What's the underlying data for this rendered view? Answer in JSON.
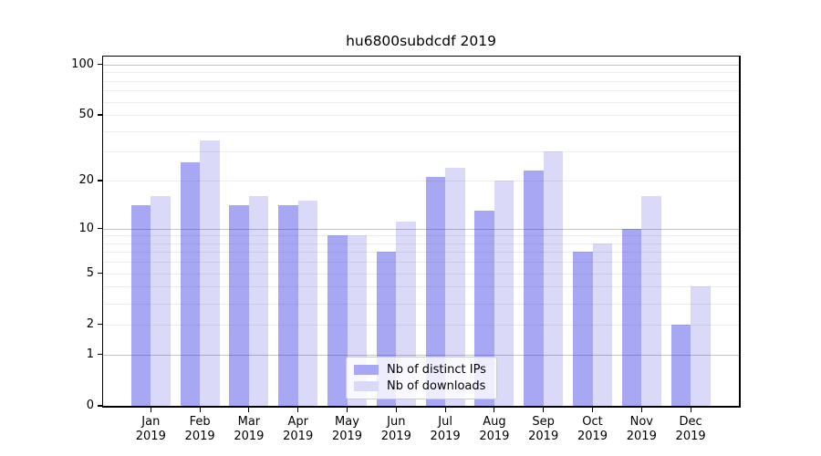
{
  "chart_data": {
    "type": "bar",
    "title": "hu6800subdcdf 2019",
    "categories": [
      {
        "month": "Jan",
        "year": "2019"
      },
      {
        "month": "Feb",
        "year": "2019"
      },
      {
        "month": "Mar",
        "year": "2019"
      },
      {
        "month": "Apr",
        "year": "2019"
      },
      {
        "month": "May",
        "year": "2019"
      },
      {
        "month": "Jun",
        "year": "2019"
      },
      {
        "month": "Jul",
        "year": "2019"
      },
      {
        "month": "Aug",
        "year": "2019"
      },
      {
        "month": "Sep",
        "year": "2019"
      },
      {
        "month": "Oct",
        "year": "2019"
      },
      {
        "month": "Nov",
        "year": "2019"
      },
      {
        "month": "Dec",
        "year": "2019"
      }
    ],
    "series": [
      {
        "name": "Nb of distinct IPs",
        "color": "#a7a7f3",
        "values": [
          14,
          26,
          14,
          14,
          9,
          7,
          21,
          13,
          23,
          7,
          10,
          2
        ]
      },
      {
        "name": "Nb of downloads",
        "color": "#dadaf8",
        "values": [
          16,
          35,
          16,
          15,
          9,
          11,
          24,
          20,
          30,
          8,
          16,
          4
        ]
      }
    ],
    "y_axis": {
      "scale": "log10(1+x)",
      "tick_values": [
        100,
        50,
        20,
        10,
        5,
        2,
        1,
        0
      ],
      "major_gridlines": [
        100,
        10,
        1
      ],
      "minor_gridlines": [
        90,
        80,
        70,
        60,
        50,
        40,
        30,
        20,
        9,
        8,
        7,
        6,
        5,
        4,
        3,
        2
      ],
      "ylim": [
        0,
        110
      ]
    },
    "legend_position": "lower center",
    "grid": "horizontal"
  }
}
